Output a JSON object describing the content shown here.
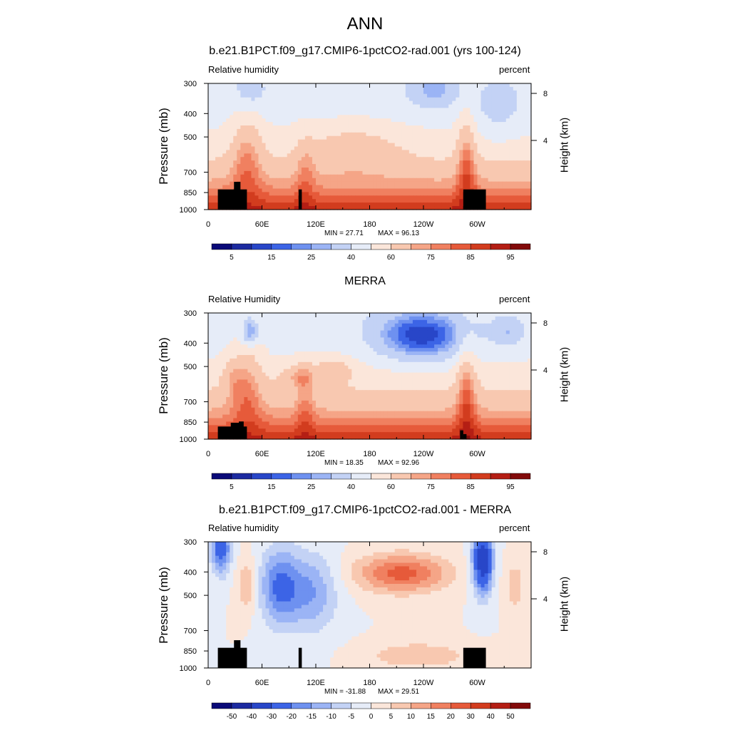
{
  "title": "ANN",
  "chart_data": [
    {
      "type": "heatmap",
      "title": "b.e21.B1PCT.f09_g17.CMIP6-1pctCO2-rad.001 (yrs 100-124)",
      "left_label": "Relative humidity",
      "right_label": "percent",
      "ylabel": "Pressure (mb)",
      "y2label": "Height (km)",
      "xticks": [
        "0",
        "60E",
        "120E",
        "180",
        "120W",
        "60W"
      ],
      "yticks": [
        "300",
        "400",
        "500",
        "700",
        "850",
        "1000"
      ],
      "y2ticks": [
        "8",
        "4"
      ],
      "min_label": "MIN =  27.71",
      "max_label": "MAX =  96.13",
      "colorbar_labels": [
        "5",
        "15",
        "25",
        "40",
        "60",
        "75",
        "85",
        "95"
      ],
      "colorbar_levels": 16,
      "palette": "absolute"
    },
    {
      "type": "heatmap",
      "title": "MERRA",
      "left_label": "Relative Humidity",
      "right_label": "percent",
      "ylabel": "Pressure (mb)",
      "y2label": "Height (km)",
      "xticks": [
        "0",
        "60E",
        "120E",
        "180",
        "120W",
        "60W"
      ],
      "yticks": [
        "300",
        "400",
        "500",
        "700",
        "850",
        "1000"
      ],
      "y2ticks": [
        "8",
        "4"
      ],
      "min_label": "MIN =  18.35",
      "max_label": "MAX =  92.96",
      "colorbar_labels": [
        "5",
        "15",
        "25",
        "40",
        "60",
        "75",
        "85",
        "95"
      ],
      "colorbar_levels": 16,
      "palette": "absolute"
    },
    {
      "type": "heatmap",
      "title": "b.e21.B1PCT.f09_g17.CMIP6-1pctCO2-rad.001 - MERRA",
      "left_label": "Relative humidity",
      "right_label": "percent",
      "ylabel": "Pressure (mb)",
      "y2label": "Height (km)",
      "xticks": [
        "0",
        "60E",
        "120E",
        "180",
        "120W",
        "60W"
      ],
      "yticks": [
        "300",
        "400",
        "500",
        "700",
        "850",
        "1000"
      ],
      "y2ticks": [
        "8",
        "4"
      ],
      "min_label": "MIN = -31.88",
      "max_label": "MAX =  29.51",
      "colorbar_labels": [
        "-50",
        "-40",
        "-30",
        "-20",
        "-15",
        "-10",
        "-5",
        "0",
        "5",
        "10",
        "15",
        "20",
        "30",
        "40",
        "50"
      ],
      "colorbar_levels": 16,
      "palette": "difference"
    }
  ],
  "colors": {
    "absolute_palette": [
      "#0a0a78",
      "#1c2aa0",
      "#2846c8",
      "#3c64e6",
      "#6e91f0",
      "#9bb4f5",
      "#c3d2f5",
      "#e6ecf8",
      "#fbe6da",
      "#f8c8b0",
      "#f5a587",
      "#f08060",
      "#e65a3a",
      "#d23c1e",
      "#b41e14",
      "#820a0a"
    ],
    "difference_palette": [
      "#0a0a78",
      "#1c2aa0",
      "#2846c8",
      "#3c64e6",
      "#6e91f0",
      "#9bb4f5",
      "#c3d2f5",
      "#e6ecf8",
      "#fbe6da",
      "#f8c8b0",
      "#f5a587",
      "#f08060",
      "#e65a3a",
      "#d23c1e",
      "#b41e14",
      "#820a0a"
    ],
    "topography": "#000000"
  }
}
